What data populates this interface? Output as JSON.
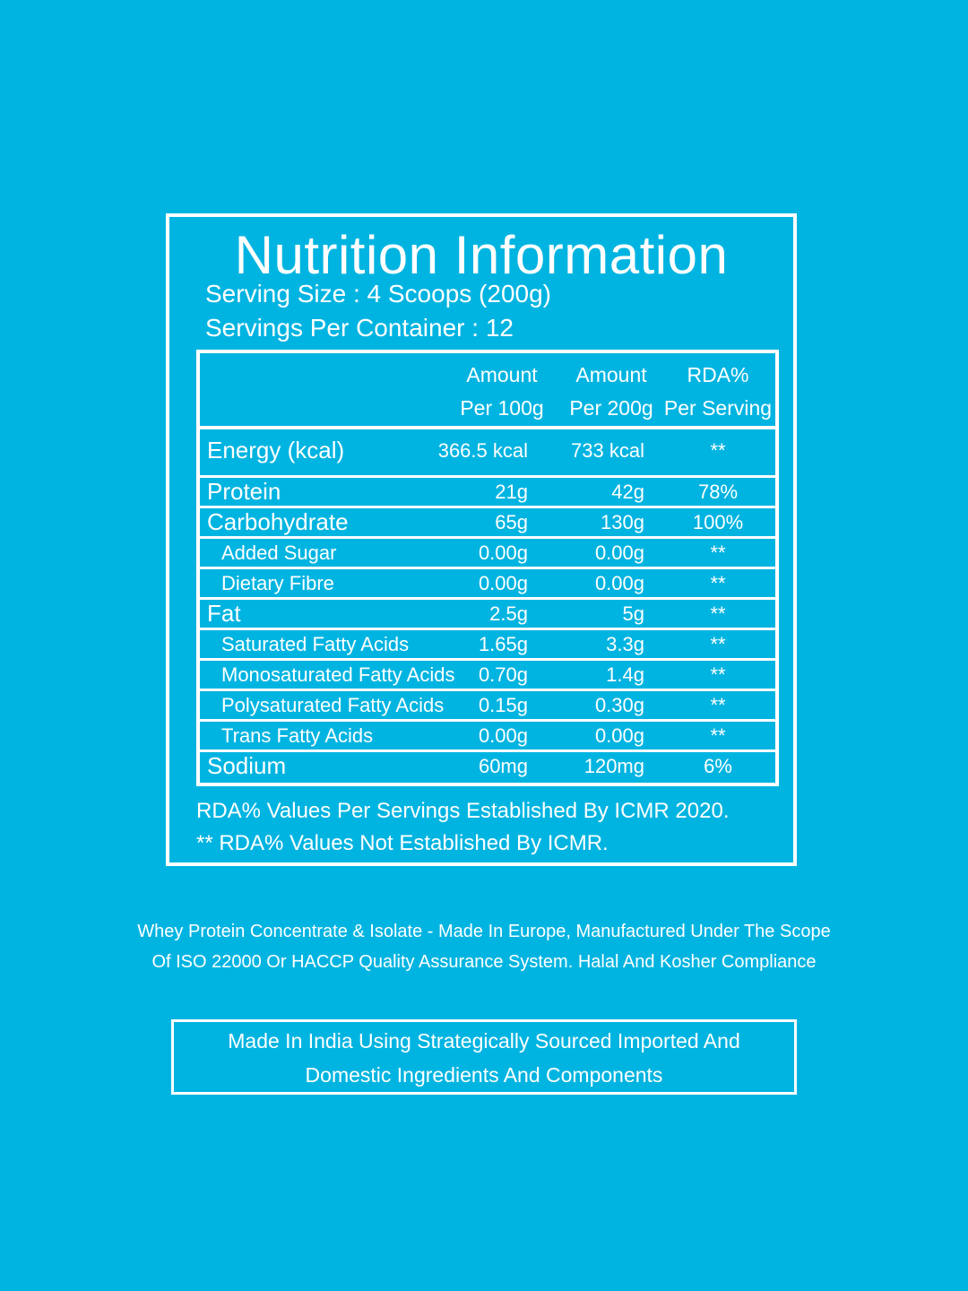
{
  "title": "Nutrition Information",
  "serving_size": "Serving Size : 4 Scoops (200g)",
  "servings_per_container": "Servings Per Container : 12",
  "table": {
    "headers": [
      {
        "line1": "Amount",
        "line2": "Per 100g"
      },
      {
        "line1": "Amount",
        "line2": "Per 200g"
      },
      {
        "line1": "RDA%",
        "line2": "Per Serving"
      }
    ],
    "rows": [
      {
        "label": "Energy (kcal)",
        "per100": "366.5 kcal",
        "per200": "733 kcal",
        "rda": "**"
      },
      {
        "label": "Protein",
        "per100": "21g",
        "per200": "42g",
        "rda": "78%"
      },
      {
        "label": "Carbohydrate",
        "per100": "65g",
        "per200": "130g",
        "rda": "100%"
      },
      {
        "label": "Added Sugar",
        "per100": "0.00g",
        "per200": "0.00g",
        "rda": "**"
      },
      {
        "label": "Dietary Fibre",
        "per100": "0.00g",
        "per200": "0.00g",
        "rda": "**"
      },
      {
        "label": "Fat",
        "per100": "2.5g",
        "per200": "5g",
        "rda": "**"
      },
      {
        "label": "Saturated Fatty Acids",
        "per100": "1.65g",
        "per200": "3.3g",
        "rda": "**"
      },
      {
        "label": "Monosaturated Fatty Acids",
        "per100": "0.70g",
        "per200": "1.4g",
        "rda": "**"
      },
      {
        "label": "Polysaturated Fatty Acids",
        "per100": "0.15g",
        "per200": "0.30g",
        "rda": "**"
      },
      {
        "label": "Trans Fatty Acids",
        "per100": "0.00g",
        "per200": "0.00g",
        "rda": "**"
      },
      {
        "label": "Sodium",
        "per100": "60mg",
        "per200": "120mg",
        "rda": "6%"
      }
    ]
  },
  "footnotes": [
    "RDA%  Values Per Servings Established By ICMR 2020.",
    "** RDA%  Values Not Established By ICMR."
  ],
  "origin_lines": [
    "Whey Protein Concentrate & Isolate - Made In Europe, Manufactured Under The Scope",
    "Of ISO 22000 Or HACCP Quality Assurance System. Halal And Kosher Compliance"
  ],
  "made_in_lines": [
    "Made In India Using Strategically Sourced Imported And",
    "Domestic Ingredients And Components"
  ],
  "colors": {
    "background": "#00B4E1",
    "foreground": "#FFFFFF"
  }
}
